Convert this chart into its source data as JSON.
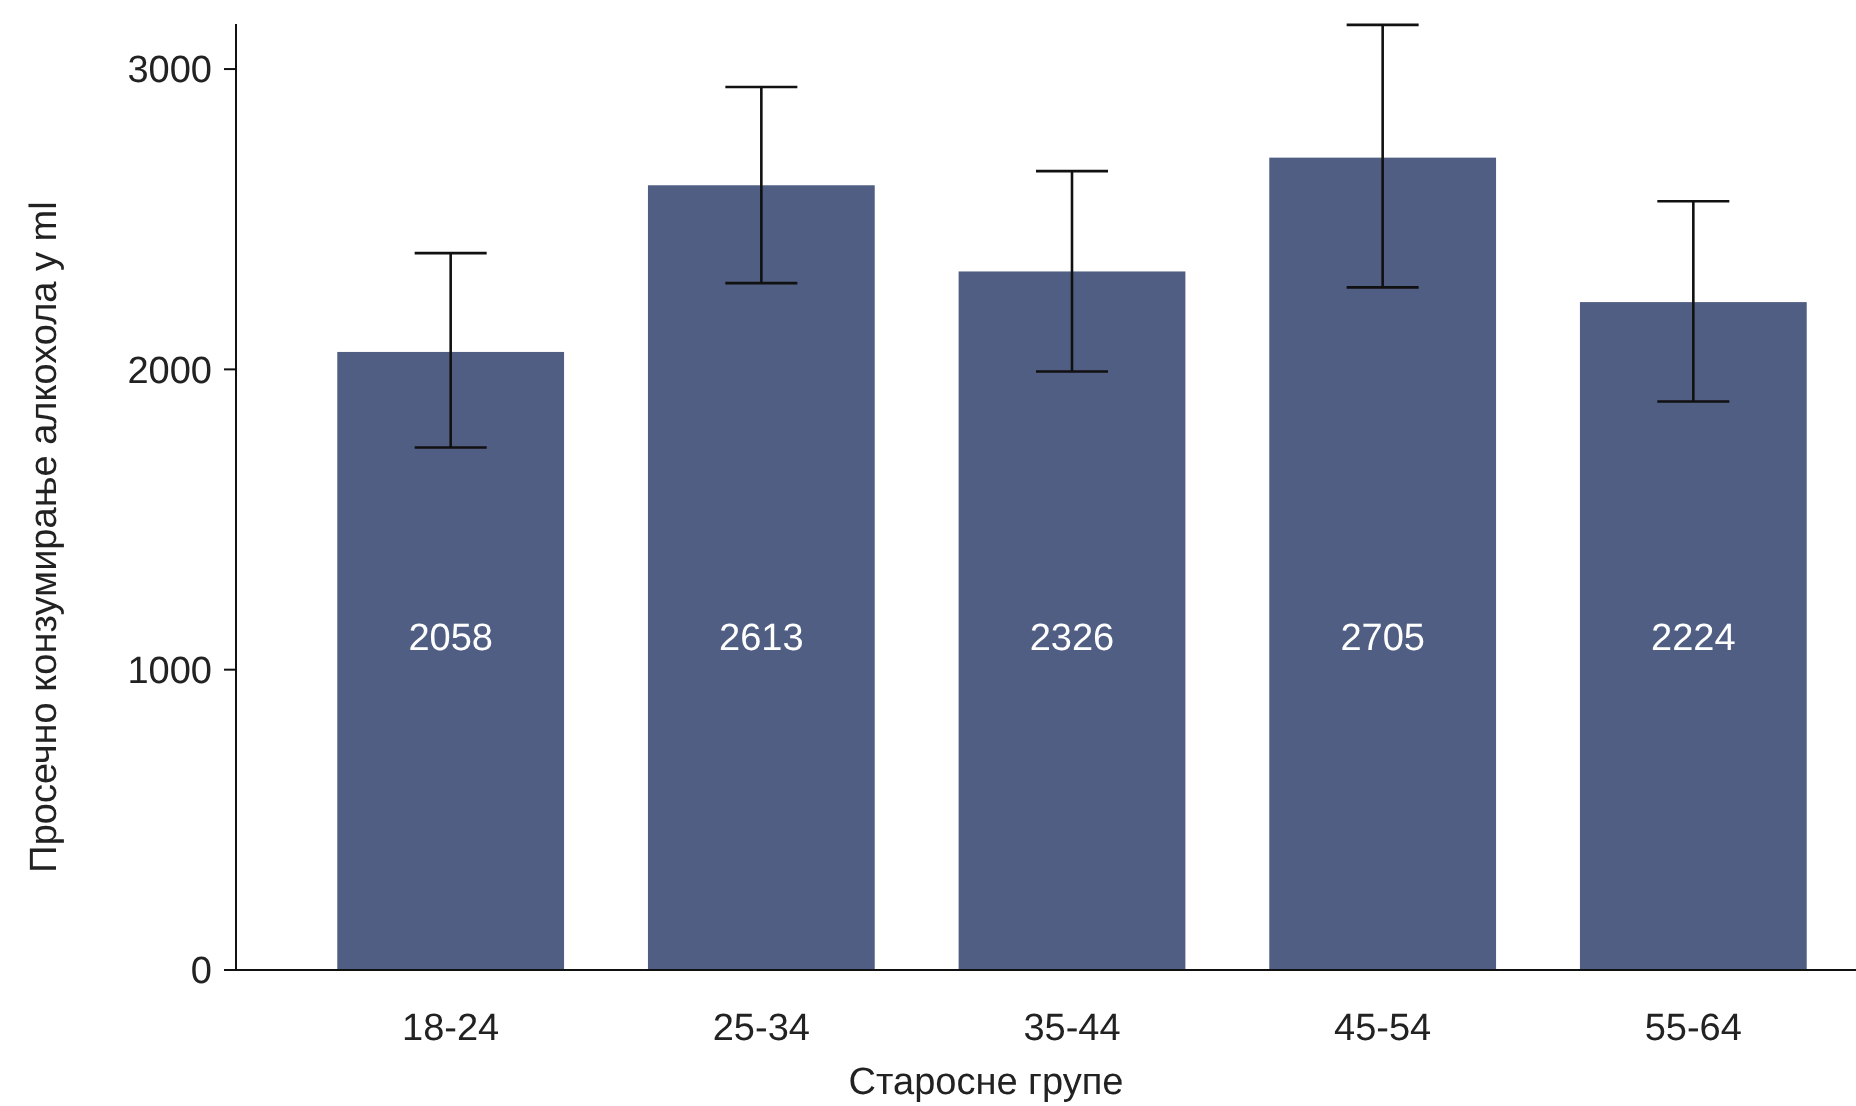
{
  "chart_data": {
    "type": "bar",
    "xlabel": "Старосне групе",
    "ylabel": "Просечно конзумирање алкохола у ml",
    "categories": [
      "18-24",
      "25-34",
      "35-44",
      "45-54",
      "55-64"
    ],
    "values": [
      2058,
      2613,
      2326,
      2705,
      2224
    ],
    "errors": [
      [
        1740,
        2387
      ],
      [
        2287,
        2940
      ],
      [
        1993,
        2660
      ],
      [
        2273,
        3147
      ],
      [
        1893,
        2560
      ]
    ],
    "color": "#4f5e82",
    "ylim": [
      0,
      3150
    ],
    "yticks": [
      0,
      1000,
      2000,
      3000
    ],
    "grid": false,
    "data_labels": true
  }
}
